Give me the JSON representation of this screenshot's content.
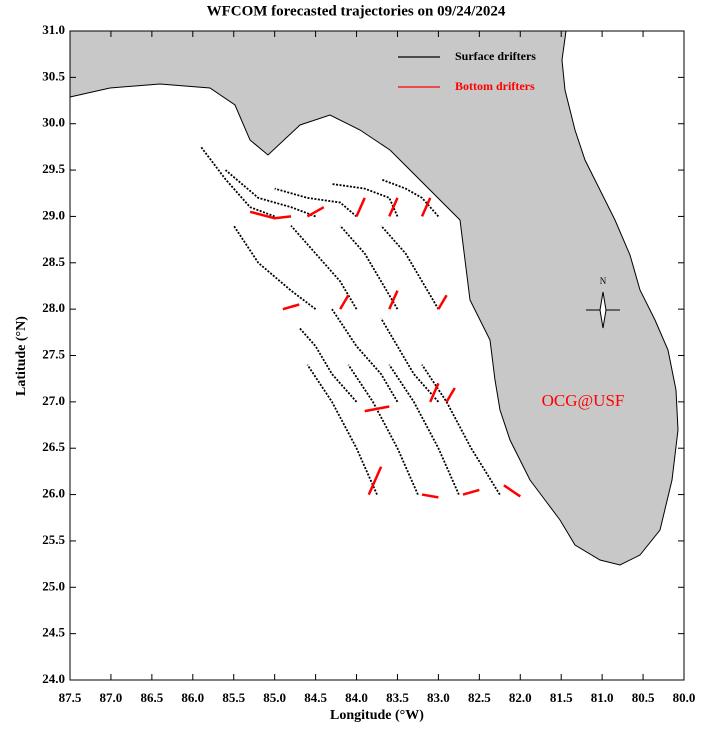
{
  "chart_data": {
    "type": "trajectory-map",
    "title": "WFCOM forecasted trajectories on 09/24/2024",
    "x_label": "Longitude (°W)",
    "y_label": "Latitude (°N)",
    "annotation": "OCG@USF",
    "compass_label": "N",
    "xlim": [
      87.5,
      80.0
    ],
    "xticks": [
      87.5,
      {
        "value": 87,
        "label": "87.0"
      },
      86.5,
      {
        "value": 86,
        "label": "86.0"
      },
      85.5,
      {
        "value": 85,
        "label": "85.0"
      },
      84.5,
      {
        "value": 84,
        "label": "84.0"
      },
      83.5,
      {
        "value": 83,
        "label": "83.0"
      },
      82.5,
      {
        "value": 82,
        "label": "82.0"
      },
      81.5,
      {
        "value": 81,
        "label": "81.0"
      },
      80.5,
      {
        "value": 80,
        "label": "80.0"
      }
    ],
    "ylim": [
      24.0,
      31.0
    ],
    "yticks": [
      {
        "value": 24,
        "label": "24.0"
      },
      24.5,
      {
        "value": 25,
        "label": "25.0"
      },
      25.5,
      {
        "value": 26,
        "label": "26.0"
      },
      26.5,
      {
        "value": 27,
        "label": "27.0"
      },
      27.5,
      {
        "value": 28,
        "label": "28.0"
      },
      28.5,
      {
        "value": 29,
        "label": "29.0"
      },
      29.5,
      {
        "value": 30,
        "label": "30.0"
      },
      30.5,
      {
        "value": 31,
        "label": "31.0"
      }
    ],
    "series": [
      {
        "name": "Surface drifters",
        "color": "#000000",
        "tracks": [
          {
            "x": [
              85.0,
              85.3,
              85.6,
              85.9
            ],
            "y": [
              29.0,
              29.1,
              29.4,
              29.75
            ]
          },
          {
            "x": [
              84.5,
              84.8,
              85.2,
              85.6
            ],
            "y": [
              29.0,
              29.1,
              29.2,
              29.5
            ]
          },
          {
            "x": [
              84.0,
              84.2,
              84.6,
              85.0
            ],
            "y": [
              29.0,
              29.15,
              29.2,
              29.3
            ]
          },
          {
            "x": [
              83.5,
              83.6,
              83.9,
              84.3
            ],
            "y": [
              29.0,
              29.2,
              29.3,
              29.35
            ]
          },
          {
            "x": [
              83.0,
              83.2,
              83.4,
              83.7
            ],
            "y": [
              29.0,
              29.2,
              29.3,
              29.4
            ]
          },
          {
            "x": [
              84.5,
              84.8,
              85.2,
              85.5
            ],
            "y": [
              28.0,
              28.2,
              28.5,
              28.9
            ]
          },
          {
            "x": [
              84.0,
              84.2,
              84.5,
              84.8
            ],
            "y": [
              28.0,
              28.3,
              28.6,
              28.9
            ]
          },
          {
            "x": [
              83.5,
              83.7,
              83.9,
              84.2
            ],
            "y": [
              28.0,
              28.3,
              28.6,
              28.9
            ]
          },
          {
            "x": [
              83.0,
              83.2,
              83.4,
              83.7
            ],
            "y": [
              28.0,
              28.3,
              28.6,
              28.9
            ]
          },
          {
            "x": [
              84.0,
              84.3,
              84.5,
              84.7
            ],
            "y": [
              27.0,
              27.3,
              27.6,
              27.8
            ]
          },
          {
            "x": [
              83.5,
              83.7,
              84.0,
              84.3
            ],
            "y": [
              27.0,
              27.3,
              27.6,
              28.0
            ]
          },
          {
            "x": [
              83.0,
              83.3,
              83.5,
              83.7
            ],
            "y": [
              27.0,
              27.3,
              27.6,
              27.9
            ]
          },
          {
            "x": [
              83.75,
              84.0,
              84.3,
              84.6
            ],
            "y": [
              26.0,
              26.5,
              27.0,
              27.4
            ]
          },
          {
            "x": [
              83.25,
              83.5,
              83.8,
              84.1
            ],
            "y": [
              26.0,
              26.5,
              27.0,
              27.4
            ]
          },
          {
            "x": [
              82.75,
              83.0,
              83.3,
              83.6
            ],
            "y": [
              26.0,
              26.5,
              27.0,
              27.4
            ]
          },
          {
            "x": [
              82.25,
              82.6,
              82.9,
              83.2
            ],
            "y": [
              26.0,
              26.5,
              27.0,
              27.4
            ]
          }
        ]
      },
      {
        "name": "Bottom drifters",
        "color": "#ff0000",
        "tracks": [
          {
            "x": [
              85.3,
              85.0,
              84.8
            ],
            "y": [
              29.05,
              28.98,
              29.0
            ]
          },
          {
            "x": [
              84.6,
              84.4
            ],
            "y": [
              29.0,
              29.1
            ]
          },
          {
            "x": [
              84.0,
              83.9
            ],
            "y": [
              29.0,
              29.2
            ]
          },
          {
            "x": [
              83.6,
              83.5
            ],
            "y": [
              29.0,
              29.2
            ]
          },
          {
            "x": [
              83.2,
              83.1
            ],
            "y": [
              29.0,
              29.2
            ]
          },
          {
            "x": [
              84.9,
              84.7
            ],
            "y": [
              28.0,
              28.05
            ]
          },
          {
            "x": [
              84.2,
              84.1
            ],
            "y": [
              28.0,
              28.15
            ]
          },
          {
            "x": [
              83.6,
              83.5
            ],
            "y": [
              28.0,
              28.2
            ]
          },
          {
            "x": [
              83.0,
              82.9
            ],
            "y": [
              28.0,
              28.15
            ]
          },
          {
            "x": [
              83.9,
              83.6
            ],
            "y": [
              26.9,
              26.95
            ]
          },
          {
            "x": [
              83.1,
              83.0
            ],
            "y": [
              27.0,
              27.2
            ]
          },
          {
            "x": [
              82.9,
              82.8
            ],
            "y": [
              27.0,
              27.15
            ]
          },
          {
            "x": [
              83.7,
              83.85
            ],
            "y": [
              26.3,
              26.0
            ]
          },
          {
            "x": [
              83.2,
              83.0
            ],
            "y": [
              26.0,
              25.97
            ]
          },
          {
            "x": [
              82.7,
              82.5
            ],
            "y": [
              26.0,
              26.05
            ]
          },
          {
            "x": [
              82.2,
              82.0
            ],
            "y": [
              26.1,
              25.98
            ]
          }
        ]
      }
    ]
  }
}
